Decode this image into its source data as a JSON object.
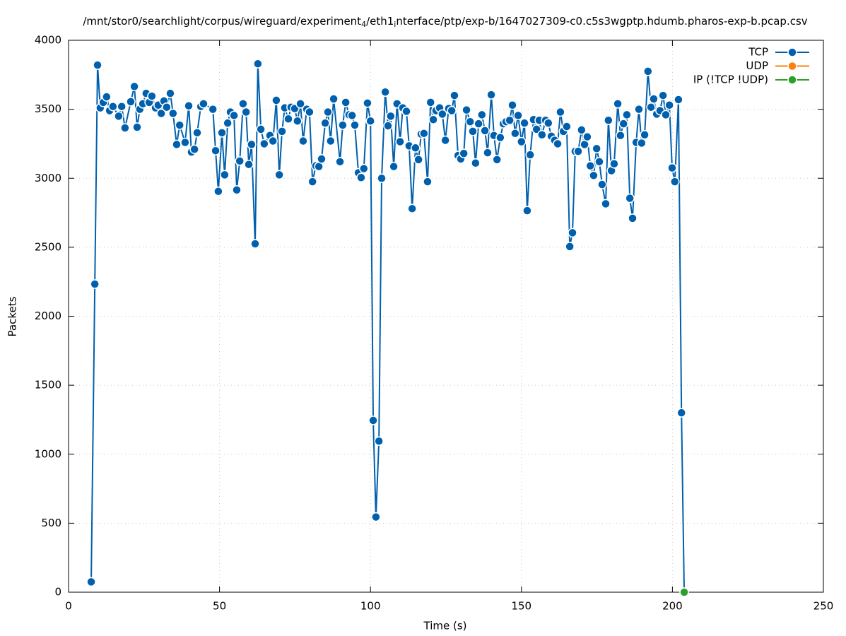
{
  "chart_data": {
    "type": "line",
    "title": [
      "/mnt/stor0/searchlight/corpus/wireguard/experiment",
      "4",
      "/eth1",
      "i",
      "nterface/ptp/exp-b/1647027309-c0.c5s3wgptp.hdumb.pharos-exp-b.pcap.csv"
    ],
    "x_label": "Time (s)",
    "y_label": "Packets",
    "xlim": [
      0,
      250
    ],
    "xticks": [
      0,
      50,
      100,
      150,
      200,
      250
    ],
    "ylim": [
      0,
      4000
    ],
    "yticks": [
      0,
      500,
      1000,
      1500,
      2000,
      2500,
      3000,
      3500,
      4000
    ],
    "grid": true,
    "legend": "top-right",
    "series": [
      {
        "name": "TCP",
        "color": "#0060ad",
        "x": [
          7.5,
          8.7,
          9.6,
          10.5,
          11.5,
          12.6,
          13.6,
          14.7,
          16.6,
          17.6,
          18.7,
          20.6,
          21.8,
          22.7,
          23.6,
          24.6,
          25.7,
          26.7,
          27.6,
          28.8,
          29.7,
          30.7,
          31.6,
          32.5,
          33.7,
          34.6,
          35.8,
          36.8,
          38.6,
          39.8,
          40.7,
          41.7,
          42.6,
          43.8,
          44.7,
          47.8,
          48.7,
          49.6,
          50.8,
          51.7,
          52.7,
          53.6,
          54.8,
          55.7,
          56.7,
          57.8,
          58.8,
          59.7,
          60.6,
          61.8,
          62.7,
          63.7,
          64.8,
          66.7,
          67.7,
          68.8,
          69.8,
          70.7,
          71.6,
          72.8,
          73.7,
          74.9,
          75.8,
          76.8,
          77.7,
          78.9,
          79.8,
          80.8,
          81.9,
          82.9,
          83.8,
          85.0,
          85.9,
          86.8,
          87.8,
          89.9,
          90.8,
          91.8,
          92.9,
          93.9,
          94.8,
          96.0,
          96.9,
          97.8,
          99.0,
          100.0,
          100.9,
          101.8,
          102.8,
          103.7,
          104.9,
          105.8,
          106.7,
          107.7,
          108.8,
          109.8,
          110.7,
          111.9,
          112.8,
          113.8,
          114.9,
          115.9,
          116.8,
          117.7,
          118.9,
          119.9,
          120.8,
          121.7,
          122.9,
          123.8,
          124.8,
          125.9,
          126.9,
          127.8,
          129.0,
          129.9,
          130.9,
          131.8,
          133.0,
          133.9,
          134.8,
          135.8,
          136.9,
          137.9,
          138.8,
          140.0,
          140.9,
          141.9,
          143.0,
          144.0,
          144.9,
          146.1,
          147.0,
          147.9,
          148.9,
          150.0,
          151.0,
          151.9,
          152.9,
          154.0,
          155.0,
          155.9,
          156.8,
          158.0,
          158.9,
          159.9,
          161.0,
          162.0,
          162.9,
          163.9,
          165.0,
          166.0,
          166.9,
          167.8,
          168.8,
          169.9,
          170.9,
          171.8,
          172.8,
          173.9,
          174.9,
          175.8,
          176.7,
          177.9,
          178.8,
          179.8,
          180.7,
          181.9,
          182.8,
          183.8,
          184.9,
          185.9,
          186.8,
          188.0,
          188.9,
          189.8,
          190.8,
          191.9,
          192.9,
          193.8,
          194.8,
          195.9,
          196.9,
          197.8,
          199.0,
          199.9,
          200.8,
          202.0,
          203.0,
          203.9
        ],
        "values": [
          75,
          2233,
          3820,
          3510,
          3550,
          3590,
          3490,
          3520,
          3450,
          3520,
          3365,
          3555,
          3665,
          3370,
          3500,
          3540,
          3615,
          3550,
          3595,
          3510,
          3530,
          3470,
          3560,
          3515,
          3615,
          3470,
          3245,
          3385,
          3260,
          3525,
          3190,
          3210,
          3330,
          3520,
          3540,
          3500,
          3200,
          2905,
          3330,
          3025,
          3400,
          3480,
          3455,
          2915,
          3125,
          3540,
          3480,
          3100,
          3245,
          2525,
          3830,
          3355,
          3250,
          3310,
          3270,
          3565,
          3025,
          3340,
          3510,
          3430,
          3515,
          3505,
          3415,
          3540,
          3270,
          3500,
          3480,
          2975,
          3090,
          3085,
          3140,
          3400,
          3480,
          3270,
          3575,
          3120,
          3385,
          3550,
          3460,
          3455,
          3385,
          3040,
          3005,
          3070,
          3545,
          3415,
          1245,
          545,
          1095,
          3000,
          3625,
          3380,
          3450,
          3085,
          3540,
          3265,
          3510,
          3485,
          3235,
          2780,
          3220,
          3135,
          3320,
          3325,
          2975,
          3550,
          3425,
          3490,
          3510,
          3465,
          3275,
          3505,
          3490,
          3600,
          3165,
          3140,
          3180,
          3495,
          3410,
          3340,
          3110,
          3395,
          3460,
          3345,
          3185,
          3605,
          3310,
          3135,
          3295,
          3395,
          3410,
          3420,
          3530,
          3325,
          3455,
          3265,
          3400,
          2765,
          3170,
          3425,
          3355,
          3420,
          3315,
          3420,
          3400,
          3305,
          3275,
          3250,
          3480,
          3340,
          3375,
          2505,
          2605,
          3195,
          3195,
          3350,
          3245,
          3300,
          3090,
          3020,
          3215,
          3120,
          2955,
          2815,
          3420,
          3055,
          3105,
          3540,
          3310,
          3395,
          3460,
          2855,
          2710,
          3260,
          3500,
          3255,
          3315,
          3775,
          3515,
          3575,
          3465,
          3490,
          3600,
          3460,
          3530,
          3075,
          2975,
          3570,
          1300,
          0
        ]
      },
      {
        "name": "UDP",
        "color": "#ff7f0e",
        "x": [],
        "values": []
      },
      {
        "name": "IP (!TCP  !UDP)",
        "color": "#2ca02c",
        "x": [
          203.9
        ],
        "values": [
          0
        ]
      }
    ]
  }
}
